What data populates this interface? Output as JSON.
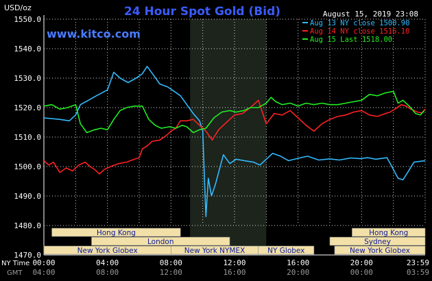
{
  "header": {
    "title": "24 Hour Spot Gold (Bid)",
    "website": "www.kitco.com",
    "unit": "USD/oz",
    "timestamp": "August 15, 2019 23:08"
  },
  "colors": {
    "background": "#000000",
    "grid": "#ffffff",
    "title": "#3a5cff",
    "website": "#4a7bff",
    "night_shade": "#1c241c",
    "session_box": "#f2e0a8",
    "session_text": "#0b1a9a",
    "axis_text": "#ffffff",
    "gmt_text": "#9a9a9a",
    "aug13": "#33bbff",
    "aug14": "#ff2222",
    "aug15": "#22ee22"
  },
  "legend": [
    {
      "text": "Aug 13 NY close 1500.90",
      "color": "#33bbff"
    },
    {
      "text": "Aug 14 NY close 1516.10",
      "color": "#ff2222"
    },
    {
      "text": "Aug 15 Last 1518.00",
      "color": "#22ee22"
    }
  ],
  "sessions": [
    {
      "label": "Hong Kong",
      "row": 0,
      "start": 0.5,
      "end": 8.6
    },
    {
      "label": "Hong Kong",
      "row": 0,
      "start": 19.4,
      "end": 24.0
    },
    {
      "label": "London",
      "row": 1,
      "start": 3.0,
      "end": 11.7
    },
    {
      "label": "Sydney",
      "row": 1,
      "start": 18.0,
      "end": 24.0
    },
    {
      "label": "New York Globex",
      "row": 2,
      "start": 0.0,
      "end": 8.0
    },
    {
      "label": "New York NYMEX",
      "row": 2,
      "start": 8.0,
      "end": 13.5
    },
    {
      "label": "NY Globex",
      "row": 2,
      "start": 13.5,
      "end": 17.0
    },
    {
      "label": "New York Globex",
      "row": 2,
      "start": 18.3,
      "end": 24.0
    }
  ],
  "time_labels": {
    "ny_label": "NY Time",
    "gmt_label": "GMT",
    "ny": [
      "00:00",
      "04:00",
      "08:00",
      "12:00",
      "16:00",
      "20:00",
      "23:59"
    ],
    "gmt": [
      "04:00",
      "08:00",
      "12:00",
      "16:00",
      "20:00",
      "00:00",
      "03:59"
    ]
  },
  "chart_data": {
    "type": "line",
    "title": "24 Hour Spot Gold (Bid)",
    "ylabel": "USD/oz",
    "xlabel": "NY Time / GMT",
    "xlim": [
      0,
      24
    ],
    "ylim": [
      1470,
      1550
    ],
    "yticks": [
      1470,
      1480,
      1490,
      1500,
      1510,
      1520,
      1530,
      1540,
      1550
    ],
    "grid": true,
    "legend_position": "top-right",
    "highlight_band": [
      9.2,
      14.0
    ],
    "series": [
      {
        "name": "Aug 13 NY close 1500.90",
        "color": "#33bbff",
        "points": [
          [
            0,
            1516.5
          ],
          [
            1,
            1516.0
          ],
          [
            1.6,
            1515.5
          ],
          [
            2.0,
            1517.5
          ],
          [
            2.3,
            1521.0
          ],
          [
            2.8,
            1522.5
          ],
          [
            3.3,
            1524.0
          ],
          [
            4.0,
            1526.0
          ],
          [
            4.4,
            1532.0
          ],
          [
            4.8,
            1530.0
          ],
          [
            5.3,
            1528.5
          ],
          [
            5.8,
            1530.0
          ],
          [
            6.2,
            1531.5
          ],
          [
            6.5,
            1534.0
          ],
          [
            6.9,
            1531.0
          ],
          [
            7.3,
            1528.0
          ],
          [
            7.8,
            1527.0
          ],
          [
            8.2,
            1525.5
          ],
          [
            8.6,
            1524.0
          ],
          [
            9.0,
            1521.0
          ],
          [
            9.4,
            1518.0
          ],
          [
            9.8,
            1515.5
          ],
          [
            10.0,
            1512.0
          ],
          [
            10.1,
            1497.0
          ],
          [
            10.2,
            1483.0
          ],
          [
            10.35,
            1496.0
          ],
          [
            10.55,
            1490.0
          ],
          [
            10.8,
            1494.0
          ],
          [
            11.0,
            1498.0
          ],
          [
            11.3,
            1504.0
          ],
          [
            11.7,
            1501.0
          ],
          [
            12.1,
            1502.5
          ],
          [
            12.6,
            1502.0
          ],
          [
            13.2,
            1501.5
          ],
          [
            13.6,
            1500.5
          ],
          [
            13.9,
            1502.0
          ],
          [
            14.4,
            1504.5
          ],
          [
            14.9,
            1503.5
          ],
          [
            15.4,
            1502.0
          ],
          [
            16.0,
            1502.8
          ],
          [
            16.6,
            1503.5
          ],
          [
            17.3,
            1502.2
          ],
          [
            18.0,
            1502.6
          ],
          [
            18.6,
            1502.2
          ],
          [
            19.3,
            1502.9
          ],
          [
            19.9,
            1502.7
          ],
          [
            20.4,
            1503.0
          ],
          [
            20.9,
            1502.5
          ],
          [
            21.6,
            1503.0
          ],
          [
            22.0,
            1499.0
          ],
          [
            22.3,
            1496.0
          ],
          [
            22.6,
            1495.5
          ],
          [
            22.9,
            1498.0
          ],
          [
            23.3,
            1501.5
          ],
          [
            24.0,
            1502.0
          ]
        ]
      },
      {
        "name": "Aug 14 NY close 1516.10",
        "color": "#ff2222",
        "points": [
          [
            0,
            1502.0
          ],
          [
            0.3,
            1500.5
          ],
          [
            0.6,
            1501.5
          ],
          [
            1.0,
            1498.0
          ],
          [
            1.4,
            1499.5
          ],
          [
            1.8,
            1498.5
          ],
          [
            2.2,
            1500.5
          ],
          [
            2.6,
            1501.5
          ],
          [
            2.9,
            1500.0
          ],
          [
            3.2,
            1499.0
          ],
          [
            3.5,
            1497.5
          ],
          [
            3.8,
            1499.0
          ],
          [
            4.2,
            1500.0
          ],
          [
            4.7,
            1501.0
          ],
          [
            5.2,
            1501.5
          ],
          [
            5.7,
            1502.5
          ],
          [
            6.0,
            1503.0
          ],
          [
            6.2,
            1506.0
          ],
          [
            6.5,
            1507.0
          ],
          [
            6.8,
            1508.5
          ],
          [
            7.3,
            1509.0
          ],
          [
            7.7,
            1510.5
          ],
          [
            8.0,
            1512.0
          ],
          [
            8.3,
            1513.0
          ],
          [
            8.6,
            1515.5
          ],
          [
            9.0,
            1515.5
          ],
          [
            9.4,
            1516.0
          ],
          [
            9.8,
            1514.0
          ],
          [
            10.2,
            1512.0
          ],
          [
            10.6,
            1509.0
          ],
          [
            11.0,
            1512.5
          ],
          [
            11.5,
            1515.0
          ],
          [
            12.0,
            1517.5
          ],
          [
            12.5,
            1518.0
          ],
          [
            13.0,
            1520.0
          ],
          [
            13.5,
            1522.5
          ],
          [
            14.0,
            1514.5
          ],
          [
            14.5,
            1518.0
          ],
          [
            15.0,
            1517.5
          ],
          [
            15.5,
            1519.0
          ],
          [
            16.0,
            1516.5
          ],
          [
            16.5,
            1514.0
          ],
          [
            17.0,
            1512.0
          ],
          [
            17.5,
            1514.5
          ],
          [
            18.0,
            1516.0
          ],
          [
            18.5,
            1517.0
          ],
          [
            19.0,
            1517.5
          ],
          [
            19.5,
            1518.5
          ],
          [
            20.0,
            1519.0
          ],
          [
            20.5,
            1517.5
          ],
          [
            21.0,
            1517.0
          ],
          [
            21.5,
            1518.0
          ],
          [
            21.8,
            1518.5
          ],
          [
            22.1,
            1519.5
          ],
          [
            22.5,
            1521.0
          ],
          [
            22.8,
            1520.5
          ],
          [
            23.1,
            1519.5
          ],
          [
            23.5,
            1518.5
          ],
          [
            23.8,
            1518.2
          ],
          [
            24.0,
            1519.5
          ]
        ]
      },
      {
        "name": "Aug 15 Last 1518.00",
        "color": "#22ee22",
        "points": [
          [
            0,
            1520.5
          ],
          [
            0.5,
            1521.0
          ],
          [
            1.0,
            1519.5
          ],
          [
            1.5,
            1520.0
          ],
          [
            2.0,
            1521.0
          ],
          [
            2.3,
            1514.5
          ],
          [
            2.7,
            1511.5
          ],
          [
            3.2,
            1512.5
          ],
          [
            3.6,
            1513.0
          ],
          [
            4.0,
            1512.5
          ],
          [
            4.4,
            1516.0
          ],
          [
            4.8,
            1519.0
          ],
          [
            5.2,
            1520.0
          ],
          [
            5.7,
            1520.5
          ],
          [
            6.2,
            1520.5
          ],
          [
            6.6,
            1516.0
          ],
          [
            7.0,
            1514.0
          ],
          [
            7.4,
            1513.0
          ],
          [
            7.9,
            1513.5
          ],
          [
            8.3,
            1513.0
          ],
          [
            8.7,
            1514.0
          ],
          [
            9.0,
            1513.5
          ],
          [
            9.4,
            1511.5
          ],
          [
            9.8,
            1512.5
          ],
          [
            10.2,
            1513.0
          ],
          [
            10.7,
            1516.5
          ],
          [
            11.2,
            1518.5
          ],
          [
            11.7,
            1519.0
          ],
          [
            12.1,
            1518.5
          ],
          [
            12.6,
            1519.0
          ],
          [
            13.0,
            1520.0
          ],
          [
            13.5,
            1520.0
          ],
          [
            14.0,
            1521.5
          ],
          [
            14.3,
            1523.5
          ],
          [
            14.6,
            1522.0
          ],
          [
            15.0,
            1521.0
          ],
          [
            15.5,
            1521.5
          ],
          [
            16.0,
            1520.5
          ],
          [
            16.5,
            1521.5
          ],
          [
            17.0,
            1521.0
          ],
          [
            17.5,
            1521.5
          ],
          [
            18.0,
            1521.0
          ],
          [
            18.5,
            1521.0
          ],
          [
            19.0,
            1521.5
          ],
          [
            19.5,
            1522.0
          ],
          [
            20.0,
            1522.5
          ],
          [
            20.5,
            1524.5
          ],
          [
            21.0,
            1524.0
          ],
          [
            21.5,
            1525.0
          ],
          [
            22.0,
            1525.5
          ],
          [
            22.3,
            1521.5
          ],
          [
            22.6,
            1522.5
          ],
          [
            23.0,
            1520.5
          ],
          [
            23.4,
            1518.0
          ],
          [
            23.7,
            1517.5
          ],
          [
            23.95,
            1519.0
          ]
        ]
      }
    ]
  }
}
